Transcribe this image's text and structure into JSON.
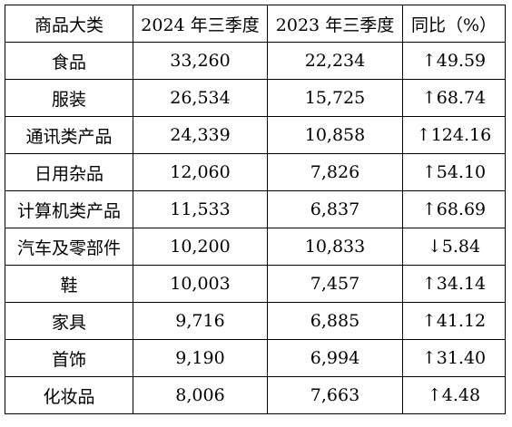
{
  "table": {
    "headers": [
      "商品大类",
      "2024 年三季度",
      "2023 年三季度",
      "同比（%）"
    ],
    "rows": [
      {
        "category": "食品",
        "q3_2024": "33,260",
        "q3_2023": "22,234",
        "yoy": "↑49.59"
      },
      {
        "category": "服装",
        "q3_2024": "26,534",
        "q3_2023": "15,725",
        "yoy": "↑68.74"
      },
      {
        "category": "通讯类产品",
        "q3_2024": "24,339",
        "q3_2023": "10,858",
        "yoy": "↑124.16"
      },
      {
        "category": "日用杂品",
        "q3_2024": "12,060",
        "q3_2023": "7,826",
        "yoy": "↑54.10"
      },
      {
        "category": "计算机类产品",
        "q3_2024": "11,533",
        "q3_2023": "6,837",
        "yoy": "↑68.69"
      },
      {
        "category": "汽车及零部件",
        "q3_2024": "10,200",
        "q3_2023": "10,833",
        "yoy": "↓5.84"
      },
      {
        "category": "鞋",
        "q3_2024": "10,003",
        "q3_2023": "7,457",
        "yoy": "↑34.14"
      },
      {
        "category": "家具",
        "q3_2024": "9,716",
        "q3_2023": "6,885",
        "yoy": "↑41.12"
      },
      {
        "category": "首饰",
        "q3_2024": "9,190",
        "q3_2023": "6,994",
        "yoy": "↑31.40"
      },
      {
        "category": "化妆品",
        "q3_2024": "8,006",
        "q3_2023": "7,663",
        "yoy": "↑4.48"
      }
    ]
  }
}
